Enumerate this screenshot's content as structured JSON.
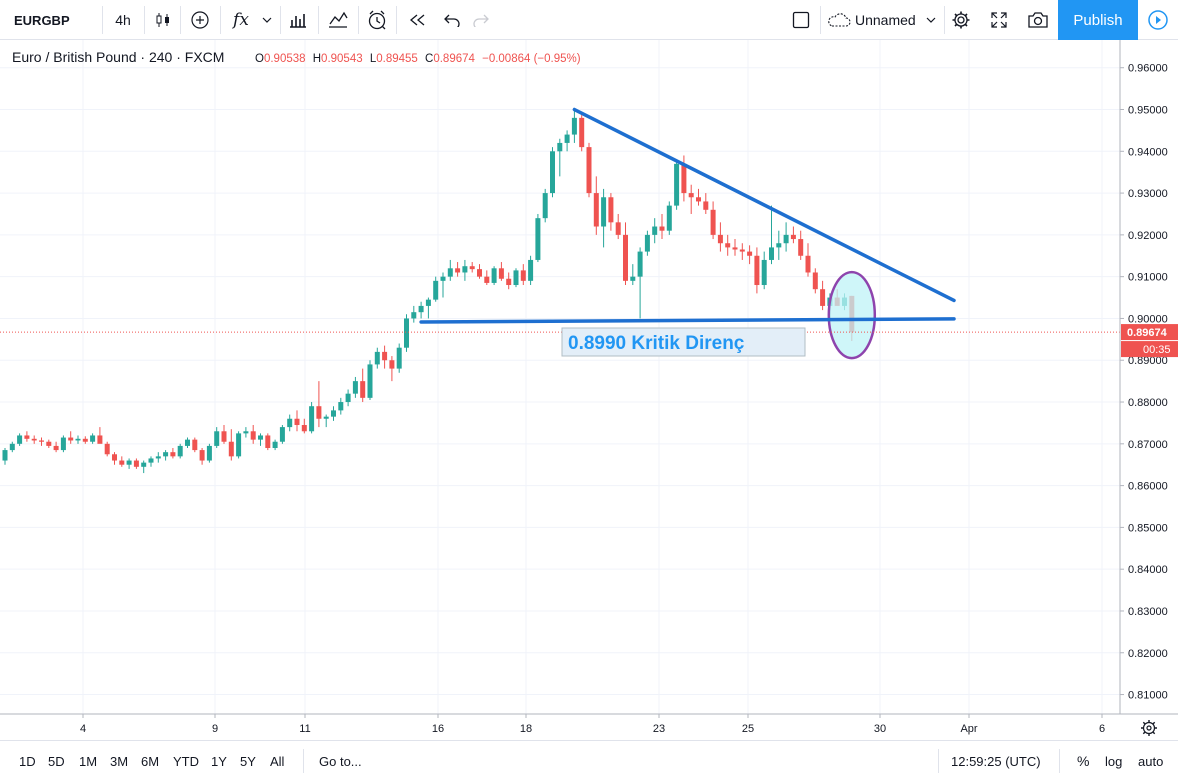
{
  "toolbar": {
    "symbol": "EURGBP",
    "interval": "4h",
    "fx_label": "fx",
    "layout_name": "Unnamed",
    "publish_label": "Publish"
  },
  "legend": {
    "symbol_name": "Euro / British Pound",
    "interval": "240",
    "exchange": "FXCM",
    "open_label": "O",
    "open": "0.90538",
    "high_label": "H",
    "high": "0.90543",
    "low_label": "L",
    "low": "0.89455",
    "close_label": "C",
    "close": "0.89674",
    "change": "−0.00864 (−0.95%)"
  },
  "annotation": {
    "text": "0.8990 Kritik Direnç"
  },
  "price_badge": {
    "price": "0.89674",
    "countdown": "00:35"
  },
  "bottombar": {
    "ranges": [
      "1D",
      "5D",
      "1M",
      "3M",
      "6M",
      "YTD",
      "1Y",
      "5Y",
      "All"
    ],
    "goto_label": "Go to...",
    "clock": "12:59:25 (UTC)",
    "percent_label": "%",
    "log_label": "log",
    "auto_label": "auto"
  },
  "colors": {
    "up": "#26a69a",
    "down": "#ef5350",
    "trendline": "#1e6fd0",
    "accent": "#2196f3",
    "ellipse_stroke": "#8e44ad",
    "ellipse_fill": "#bff3f7"
  },
  "chart_data": {
    "type": "candlestick",
    "y_ticks": [
      "0.96000",
      "0.95000",
      "0.94000",
      "0.93000",
      "0.92000",
      "0.91000",
      "0.90000",
      "0.89000",
      "0.88000",
      "0.87000",
      "0.86000",
      "0.85000",
      "0.84000",
      "0.83000",
      "0.82000",
      "0.81000"
    ],
    "ylim": [
      0.8075,
      0.964
    ],
    "x_ticks": [
      "4",
      "9",
      "11",
      "16",
      "18",
      "23",
      "25",
      "30",
      "Apr",
      "6"
    ],
    "candles": [
      [
        0.866,
        0.869,
        0.865,
        0.8685
      ],
      [
        0.8685,
        0.8705,
        0.868,
        0.87
      ],
      [
        0.87,
        0.8725,
        0.8695,
        0.872
      ],
      [
        0.872,
        0.873,
        0.8705,
        0.8712
      ],
      [
        0.8712,
        0.872,
        0.87,
        0.8708
      ],
      [
        0.8708,
        0.8715,
        0.8695,
        0.8705
      ],
      [
        0.8705,
        0.871,
        0.869,
        0.8695
      ],
      [
        0.8695,
        0.8705,
        0.868,
        0.8685
      ],
      [
        0.8685,
        0.872,
        0.868,
        0.8715
      ],
      [
        0.8715,
        0.873,
        0.87,
        0.8708
      ],
      [
        0.8708,
        0.872,
        0.87,
        0.8712
      ],
      [
        0.8712,
        0.8718,
        0.87,
        0.8705
      ],
      [
        0.8705,
        0.8725,
        0.87,
        0.872
      ],
      [
        0.872,
        0.874,
        0.871,
        0.87
      ],
      [
        0.87,
        0.8705,
        0.867,
        0.8675
      ],
      [
        0.8675,
        0.868,
        0.865,
        0.866
      ],
      [
        0.866,
        0.867,
        0.8645,
        0.865
      ],
      [
        0.865,
        0.8665,
        0.864,
        0.866
      ],
      [
        0.866,
        0.8665,
        0.864,
        0.8645
      ],
      [
        0.8645,
        0.866,
        0.863,
        0.8655
      ],
      [
        0.8655,
        0.867,
        0.8645,
        0.8665
      ],
      [
        0.8665,
        0.868,
        0.8655,
        0.867
      ],
      [
        0.867,
        0.8685,
        0.866,
        0.868
      ],
      [
        0.868,
        0.869,
        0.8665,
        0.867
      ],
      [
        0.867,
        0.87,
        0.8665,
        0.8695
      ],
      [
        0.8695,
        0.8715,
        0.869,
        0.871
      ],
      [
        0.871,
        0.8715,
        0.868,
        0.8685
      ],
      [
        0.8685,
        0.869,
        0.865,
        0.866
      ],
      [
        0.866,
        0.87,
        0.8655,
        0.8695
      ],
      [
        0.8695,
        0.874,
        0.869,
        0.873
      ],
      [
        0.873,
        0.8745,
        0.87,
        0.8705
      ],
      [
        0.8705,
        0.8735,
        0.866,
        0.867
      ],
      [
        0.867,
        0.873,
        0.8665,
        0.8725
      ],
      [
        0.8725,
        0.874,
        0.8715,
        0.873
      ],
      [
        0.873,
        0.8745,
        0.87,
        0.871
      ],
      [
        0.871,
        0.8725,
        0.8695,
        0.872
      ],
      [
        0.872,
        0.8725,
        0.8685,
        0.869
      ],
      [
        0.869,
        0.871,
        0.8685,
        0.8705
      ],
      [
        0.8705,
        0.8745,
        0.87,
        0.874
      ],
      [
        0.874,
        0.877,
        0.873,
        0.876
      ],
      [
        0.876,
        0.878,
        0.873,
        0.8745
      ],
      [
        0.8745,
        0.876,
        0.8725,
        0.873
      ],
      [
        0.873,
        0.88,
        0.8725,
        0.879
      ],
      [
        0.879,
        0.885,
        0.874,
        0.876
      ],
      [
        0.876,
        0.877,
        0.874,
        0.8765
      ],
      [
        0.8765,
        0.879,
        0.8755,
        0.878
      ],
      [
        0.878,
        0.881,
        0.877,
        0.88
      ],
      [
        0.88,
        0.883,
        0.879,
        0.882
      ],
      [
        0.882,
        0.886,
        0.881,
        0.885
      ],
      [
        0.885,
        0.888,
        0.88,
        0.881
      ],
      [
        0.881,
        0.89,
        0.8805,
        0.889
      ],
      [
        0.889,
        0.893,
        0.888,
        0.892
      ],
      [
        0.892,
        0.8935,
        0.888,
        0.89
      ],
      [
        0.89,
        0.891,
        0.885,
        0.888
      ],
      [
        0.888,
        0.894,
        0.887,
        0.893
      ],
      [
        0.893,
        0.901,
        0.892,
        0.9
      ],
      [
        0.9,
        0.903,
        0.899,
        0.9015
      ],
      [
        0.9015,
        0.904,
        0.9,
        0.903
      ],
      [
        0.903,
        0.905,
        0.9,
        0.9045
      ],
      [
        0.9045,
        0.91,
        0.904,
        0.909
      ],
      [
        0.909,
        0.911,
        0.905,
        0.91
      ],
      [
        0.91,
        0.914,
        0.909,
        0.912
      ],
      [
        0.912,
        0.9135,
        0.91,
        0.911
      ],
      [
        0.911,
        0.914,
        0.909,
        0.9125
      ],
      [
        0.9125,
        0.9135,
        0.911,
        0.9118
      ],
      [
        0.9118,
        0.913,
        0.9095,
        0.91
      ],
      [
        0.91,
        0.9115,
        0.908,
        0.9085
      ],
      [
        0.9085,
        0.9125,
        0.908,
        0.912
      ],
      [
        0.912,
        0.9135,
        0.909,
        0.9095
      ],
      [
        0.9095,
        0.911,
        0.907,
        0.908
      ],
      [
        0.908,
        0.912,
        0.9075,
        0.9115
      ],
      [
        0.9115,
        0.913,
        0.908,
        0.909
      ],
      [
        0.909,
        0.915,
        0.908,
        0.914
      ],
      [
        0.914,
        0.925,
        0.9135,
        0.924
      ],
      [
        0.924,
        0.931,
        0.923,
        0.93
      ],
      [
        0.93,
        0.941,
        0.929,
        0.94
      ],
      [
        0.94,
        0.943,
        0.934,
        0.942
      ],
      [
        0.942,
        0.945,
        0.94,
        0.944
      ],
      [
        0.944,
        0.95,
        0.942,
        0.948
      ],
      [
        0.948,
        0.949,
        0.94,
        0.941
      ],
      [
        0.941,
        0.942,
        0.929,
        0.93
      ],
      [
        0.93,
        0.934,
        0.92,
        0.922
      ],
      [
        0.922,
        0.931,
        0.917,
        0.929
      ],
      [
        0.929,
        0.93,
        0.921,
        0.923
      ],
      [
        0.923,
        0.925,
        0.919,
        0.92
      ],
      [
        0.92,
        0.923,
        0.908,
        0.909
      ],
      [
        0.909,
        0.913,
        0.908,
        0.91
      ],
      [
        0.91,
        0.917,
        0.9,
        0.916
      ],
      [
        0.916,
        0.921,
        0.915,
        0.92
      ],
      [
        0.92,
        0.924,
        0.918,
        0.922
      ],
      [
        0.922,
        0.925,
        0.919,
        0.921
      ],
      [
        0.921,
        0.928,
        0.92,
        0.927
      ],
      [
        0.927,
        0.938,
        0.926,
        0.937
      ],
      [
        0.937,
        0.939,
        0.928,
        0.93
      ],
      [
        0.93,
        0.932,
        0.925,
        0.929
      ],
      [
        0.929,
        0.931,
        0.927,
        0.928
      ],
      [
        0.928,
        0.93,
        0.925,
        0.926
      ],
      [
        0.926,
        0.928,
        0.919,
        0.92
      ],
      [
        0.92,
        0.923,
        0.916,
        0.918
      ],
      [
        0.918,
        0.92,
        0.915,
        0.917
      ],
      [
        0.917,
        0.919,
        0.915,
        0.9165
      ],
      [
        0.9165,
        0.918,
        0.914,
        0.916
      ],
      [
        0.916,
        0.9175,
        0.913,
        0.915
      ],
      [
        0.915,
        0.917,
        0.906,
        0.908
      ],
      [
        0.908,
        0.916,
        0.907,
        0.914
      ],
      [
        0.914,
        0.927,
        0.913,
        0.917
      ],
      [
        0.917,
        0.921,
        0.914,
        0.918
      ],
      [
        0.918,
        0.923,
        0.916,
        0.92
      ],
      [
        0.92,
        0.922,
        0.918,
        0.919
      ],
      [
        0.919,
        0.921,
        0.914,
        0.915
      ],
      [
        0.915,
        0.918,
        0.91,
        0.911
      ],
      [
        0.911,
        0.912,
        0.906,
        0.907
      ],
      [
        0.907,
        0.909,
        0.902,
        0.903
      ],
      [
        0.903,
        0.906,
        0.9,
        0.905
      ],
      [
        0.905,
        0.907,
        0.904,
        0.903
      ],
      [
        0.903,
        0.906,
        0.902,
        0.905
      ],
      [
        0.9054,
        0.9054,
        0.8946,
        0.8967
      ]
    ],
    "horizontal_line": {
      "from_index": 57,
      "to_index": 130,
      "from_price": 0.89915,
      "to_price": 0.8999
    },
    "descending_line": {
      "from_index": 78,
      "to_index": 130,
      "from_price": 0.95,
      "to_price": 0.9043
    },
    "current_price": 0.89674
  }
}
